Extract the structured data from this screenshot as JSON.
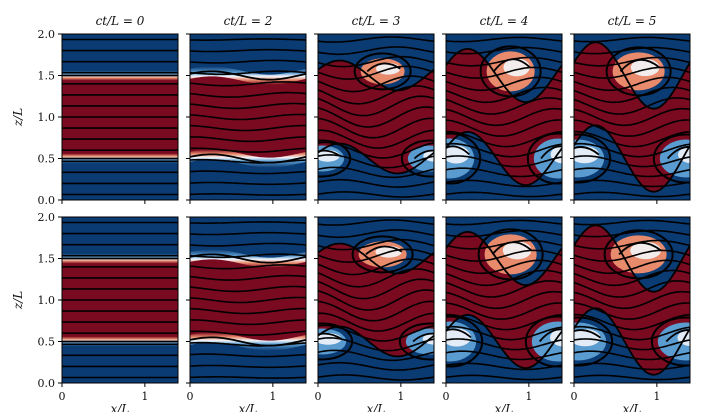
{
  "chart_data": {
    "type": "heatmap",
    "description_type": "small-multiples field snapshots with streamlines",
    "colors": {
      "low": "#0b3b73",
      "high": "#7a0a1f",
      "mid_light": "#f3f6fb",
      "warm_mid": "#e88a6c",
      "cool_mid": "#5a9bd0",
      "streamline": "#000000"
    },
    "columns": [
      {
        "title": "ct/L = 0",
        "time": 0
      },
      {
        "title": "ct/L = 2",
        "time": 2
      },
      {
        "title": "ct/L = 3",
        "time": 3
      },
      {
        "title": "ct/L = 4",
        "time": 4
      },
      {
        "title": "ct/L = 5",
        "time": 5
      }
    ],
    "rows": [
      {
        "ylabel": "z/L"
      },
      {
        "ylabel": "z/L"
      }
    ],
    "xlabel": "x/L",
    "xlim": [
      0,
      1.4
    ],
    "ylim": [
      0,
      2.0
    ],
    "xticks": [
      {
        "value": 0,
        "label": "0"
      },
      {
        "value": 1,
        "label": "1"
      }
    ],
    "yticks": [
      {
        "value": 0.0,
        "label": "0.0"
      },
      {
        "value": 0.5,
        "label": "0.5"
      },
      {
        "value": 1.0,
        "label": "1.0"
      },
      {
        "value": 1.5,
        "label": "1.5"
      },
      {
        "value": 2.0,
        "label": "2.0"
      }
    ],
    "shear_layers_z": [
      0.5,
      1.5
    ],
    "core_band": [
      0.5,
      1.5
    ],
    "streamline_count": 15,
    "grid": false
  }
}
